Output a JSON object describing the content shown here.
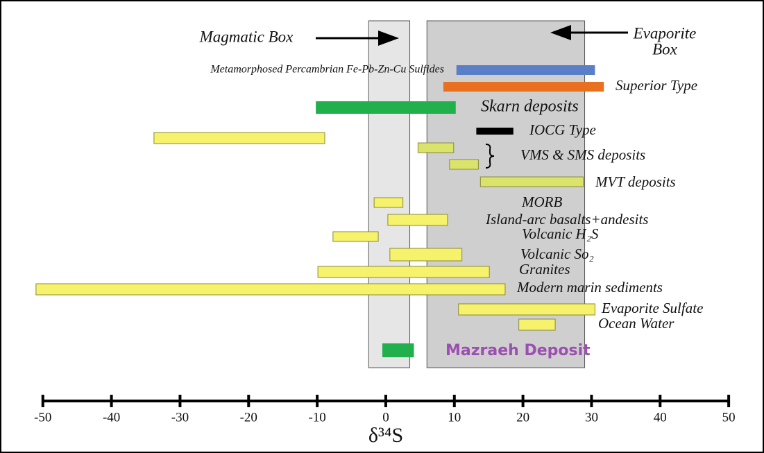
{
  "chart_data": {
    "type": "range-bar",
    "x_label": "δ³⁴S",
    "xlim": [
      -52,
      51
    ],
    "xticks": [
      -50,
      -40,
      -30,
      -20,
      -10,
      0,
      10,
      20,
      30,
      40,
      50
    ],
    "boxes": [
      {
        "label_lines": [
          "Magmatic Box"
        ],
        "range": [
          -2.5,
          3.5
        ],
        "color": "#e6e6e6"
      },
      {
        "label_lines": [
          "Evaporite",
          "Box"
        ],
        "range": [
          6,
          29
        ],
        "color": "#cfcfcf"
      }
    ],
    "items": [
      {
        "label": "Metamorphosed Percambrian Fe-Pb-Zn-Cu Sulfides",
        "ranges": [
          [
            10.3,
            30.5
          ]
        ],
        "color": "#5b7ec8"
      },
      {
        "label": "Superior Type",
        "ranges": [
          [
            8.4,
            31.8
          ]
        ],
        "color": "#e8701e"
      },
      {
        "label": "Skarn deposits",
        "ranges": [
          [
            -10.2,
            10.2
          ]
        ],
        "color": "#22b04c"
      },
      {
        "label": "IOCG Type",
        "ranges": [
          [
            13.2,
            18.6
          ]
        ],
        "color": "#000000"
      },
      {
        "label": null,
        "ranges": [
          [
            -33.8,
            -8.9
          ]
        ],
        "color": "#f6f26c"
      },
      {
        "label": "VMS & SMS deposits",
        "ranges": [
          [
            4.7,
            9.9
          ],
          [
            9.3,
            13.5
          ]
        ],
        "color": "#dbe46a"
      },
      {
        "label": "MVT deposits",
        "ranges": [
          [
            13.8,
            28.8
          ]
        ],
        "color": "#dbe46a"
      },
      {
        "label": "MORB",
        "ranges": [
          [
            -1.7,
            2.5
          ]
        ],
        "color": "#f6f26c"
      },
      {
        "label": "Island-arc basalts+andesits",
        "ranges": [
          [
            0.3,
            9.0
          ]
        ],
        "color": "#f6f26c"
      },
      {
        "label": "Volcanic H₂S",
        "ranges": [
          [
            -7.7,
            -1.1
          ]
        ],
        "color": "#f6f26c"
      },
      {
        "label": "Volcanic So₂",
        "ranges": [
          [
            0.6,
            11.1
          ]
        ],
        "color": "#f6f26c"
      },
      {
        "label": "Granites",
        "ranges": [
          [
            -9.9,
            15.1
          ]
        ],
        "color": "#f6f26c"
      },
      {
        "label": "Modern marin sediments",
        "ranges": [
          [
            -51,
            17.4
          ]
        ],
        "color": "#f6f26c"
      },
      {
        "label": "Evaporite Sulfate",
        "ranges": [
          [
            10.6,
            30.5
          ]
        ],
        "color": "#f6f26c"
      },
      {
        "label": "Ocean Water",
        "ranges": [
          [
            19.4,
            24.7
          ]
        ],
        "color": "#f6f26c"
      },
      {
        "label": "Mazraeh Deposit",
        "ranges": [
          [
            -0.5,
            4.1
          ]
        ],
        "color": "#22b04c"
      }
    ]
  }
}
